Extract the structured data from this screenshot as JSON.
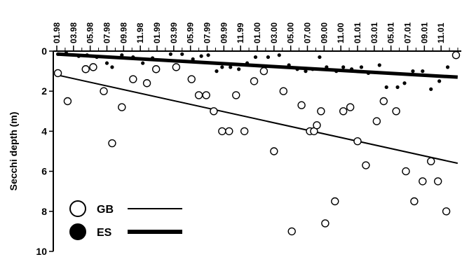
{
  "chart_data": {
    "type": "scatter",
    "title": "",
    "xlabel": "",
    "ylabel": "Secchi depth (m)",
    "x_tick_labels": [
      "01.98",
      "03.98",
      "05.98",
      "07.98",
      "09.98",
      "11.98",
      "01.99",
      "03.99",
      "05.99",
      "07.99",
      "09.99",
      "11.99",
      "01.00",
      "03.00",
      "05.00",
      "07.00",
      "09.00",
      "11.00",
      "01.01",
      "03.01",
      "05.01",
      "07.01",
      "09.01",
      "11.01"
    ],
    "y_ticks": [
      0,
      2,
      4,
      6,
      8,
      10
    ],
    "xlim": [
      "01.98",
      "12.01"
    ],
    "ylim": [
      0,
      10
    ],
    "y_inverted": true,
    "x_axis_position": "top",
    "grid": false,
    "legend_position": "bottom-left",
    "series": [
      {
        "name": "GB",
        "marker": "open-circle",
        "trend_line": "thin",
        "points": [
          {
            "x": "1998-01-05",
            "y": 1.1
          },
          {
            "x": "1998-02-10",
            "y": 2.5
          },
          {
            "x": "1998-04-15",
            "y": 0.9
          },
          {
            "x": "1998-05-12",
            "y": 0.8
          },
          {
            "x": "1998-06-20",
            "y": 2.0
          },
          {
            "x": "1998-07-20",
            "y": 4.6
          },
          {
            "x": "1998-08-25",
            "y": 2.8
          },
          {
            "x": "1998-10-05",
            "y": 1.4
          },
          {
            "x": "1998-11-25",
            "y": 1.6
          },
          {
            "x": "1998-12-28",
            "y": 0.9
          },
          {
            "x": "1999-03-10",
            "y": 0.8
          },
          {
            "x": "1999-05-05",
            "y": 1.4
          },
          {
            "x": "1999-06-01",
            "y": 2.2
          },
          {
            "x": "1999-06-28",
            "y": 2.2
          },
          {
            "x": "1999-07-25",
            "y": 3.0
          },
          {
            "x": "1999-08-25",
            "y": 4.0
          },
          {
            "x": "1999-09-20",
            "y": 4.0
          },
          {
            "x": "1999-10-15",
            "y": 2.2
          },
          {
            "x": "1999-11-15",
            "y": 4.0
          },
          {
            "x": "1999-12-20",
            "y": 1.5
          },
          {
            "x": "2000-01-25",
            "y": 1.0
          },
          {
            "x": "2000-03-01",
            "y": 5.0
          },
          {
            "x": "2000-04-05",
            "y": 2.0
          },
          {
            "x": "2000-05-05",
            "y": 9.0
          },
          {
            "x": "2000-06-10",
            "y": 2.7
          },
          {
            "x": "2000-07-10",
            "y": 4.0
          },
          {
            "x": "2000-07-25",
            "y": 4.0
          },
          {
            "x": "2000-08-05",
            "y": 3.7
          },
          {
            "x": "2000-08-20",
            "y": 3.0
          },
          {
            "x": "2000-09-05",
            "y": 8.6
          },
          {
            "x": "2000-10-10",
            "y": 7.5
          },
          {
            "x": "2000-11-10",
            "y": 3.0
          },
          {
            "x": "2000-12-05",
            "y": 2.8
          },
          {
            "x": "2001-01-01",
            "y": 4.5
          },
          {
            "x": "2001-02-01",
            "y": 5.7
          },
          {
            "x": "2001-03-10",
            "y": 3.5
          },
          {
            "x": "2001-04-05",
            "y": 2.5
          },
          {
            "x": "2001-05-20",
            "y": 3.0
          },
          {
            "x": "2001-06-25",
            "y": 6.0
          },
          {
            "x": "2001-07-25",
            "y": 7.5
          },
          {
            "x": "2001-08-25",
            "y": 6.5
          },
          {
            "x": "2001-09-25",
            "y": 5.5
          },
          {
            "x": "2001-10-20",
            "y": 6.5
          },
          {
            "x": "2001-11-20",
            "y": 8.0
          },
          {
            "x": "2001-12-25",
            "y": 0.2
          }
        ],
        "trend": {
          "start": {
            "x": "1998-01-05",
            "y": 1.2
          },
          "end": {
            "x": "2001-12-31",
            "y": 5.6
          }
        }
      },
      {
        "name": "ES",
        "marker": "filled-circle",
        "trend_line": "thick",
        "points": [
          {
            "x": "1998-01-05",
            "y": 0.15
          },
          {
            "x": "1998-02-05",
            "y": 0.1
          },
          {
            "x": "1998-03-20",
            "y": 0.25
          },
          {
            "x": "1998-04-20",
            "y": 0.2
          },
          {
            "x": "1998-05-25",
            "y": 0.3
          },
          {
            "x": "1998-07-01",
            "y": 0.6
          },
          {
            "x": "1998-07-20",
            "y": 0.8
          },
          {
            "x": "1998-08-25",
            "y": 0.2
          },
          {
            "x": "1998-10-05",
            "y": 0.3
          },
          {
            "x": "1998-11-10",
            "y": 0.6
          },
          {
            "x": "1998-12-15",
            "y": 0.35
          },
          {
            "x": "1999-02-20",
            "y": 0.15
          },
          {
            "x": "1999-04-01",
            "y": 0.15
          },
          {
            "x": "1999-05-10",
            "y": 0.4
          },
          {
            "x": "1999-06-10",
            "y": 0.25
          },
          {
            "x": "1999-07-05",
            "y": 0.2
          },
          {
            "x": "1999-08-05",
            "y": 1.0
          },
          {
            "x": "1999-08-25",
            "y": 0.8
          },
          {
            "x": "1999-09-25",
            "y": 0.8
          },
          {
            "x": "1999-10-25",
            "y": 0.9
          },
          {
            "x": "1999-11-25",
            "y": 0.6
          },
          {
            "x": "1999-12-25",
            "y": 0.3
          },
          {
            "x": "2000-02-10",
            "y": 0.3
          },
          {
            "x": "2000-03-20",
            "y": 0.2
          },
          {
            "x": "2000-04-25",
            "y": 0.7
          },
          {
            "x": "2000-05-25",
            "y": 0.9
          },
          {
            "x": "2000-06-25",
            "y": 1.0
          },
          {
            "x": "2000-07-20",
            "y": 0.9
          },
          {
            "x": "2000-08-15",
            "y": 0.3
          },
          {
            "x": "2000-09-10",
            "y": 0.8
          },
          {
            "x": "2000-10-15",
            "y": 1.0
          },
          {
            "x": "2000-11-10",
            "y": 0.8
          },
          {
            "x": "2000-12-10",
            "y": 0.9
          },
          {
            "x": "2001-01-15",
            "y": 0.8
          },
          {
            "x": "2001-02-10",
            "y": 1.1
          },
          {
            "x": "2001-03-20",
            "y": 0.7
          },
          {
            "x": "2001-04-15",
            "y": 1.8
          },
          {
            "x": "2001-05-25",
            "y": 1.8
          },
          {
            "x": "2001-06-20",
            "y": 1.6
          },
          {
            "x": "2001-07-20",
            "y": 1.0
          },
          {
            "x": "2001-08-25",
            "y": 1.0
          },
          {
            "x": "2001-09-25",
            "y": 1.9
          },
          {
            "x": "2001-10-25",
            "y": 1.5
          },
          {
            "x": "2001-11-25",
            "y": 0.8
          }
        ],
        "trend": {
          "start": {
            "x": "1998-01-05",
            "y": 0.15
          },
          "end": {
            "x": "2001-12-31",
            "y": 1.3
          }
        }
      }
    ]
  }
}
